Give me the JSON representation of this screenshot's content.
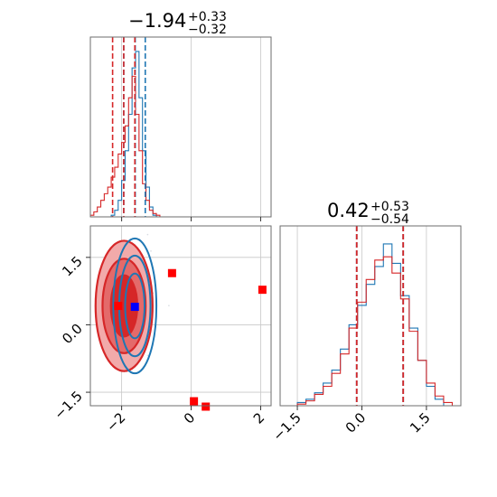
{
  "colors": {
    "blue": "#1f77b4",
    "red": "#d62728",
    "red_fill_light": "#f2aaaa",
    "red_fill_mid": "#e46a6a",
    "grid": "#c8c8c8",
    "marker_red": "#ff0000",
    "marker_blue": "#0000ff"
  },
  "chart_data": [
    {
      "type": "histogram",
      "panel": "param1-marginal",
      "title": {
        "value": "−1.94",
        "upper": "+0.33",
        "lower": "−0.32"
      },
      "xlim": [
        -2.9,
        2.3
      ],
      "grid": true,
      "series": [
        {
          "color": "#1f77b4",
          "bin_edges": [
            -2.4,
            -2.3,
            -2.2,
            -2.1,
            -2.0,
            -1.9,
            -1.8,
            -1.7,
            -1.6,
            -1.5,
            -1.4,
            -1.3,
            -1.2,
            -1.1,
            -1.0
          ],
          "counts": [
            0,
            1,
            4,
            10,
            22,
            40,
            62,
            90,
            100,
            72,
            40,
            18,
            6,
            1
          ]
        },
        {
          "color": "#d62728",
          "bin_edges": [
            -2.9,
            -2.8,
            -2.7,
            -2.6,
            -2.5,
            -2.4,
            -2.3,
            -2.2,
            -2.1,
            -2.0,
            -1.9,
            -1.8,
            -1.7,
            -1.6,
            -1.5,
            -1.4,
            -1.3,
            -1.2,
            -1.1,
            -1.0,
            -0.9,
            -0.8
          ],
          "counts": [
            1,
            3,
            6,
            10,
            14,
            18,
            24,
            30,
            38,
            45,
            55,
            72,
            85,
            62,
            40,
            20,
            10,
            4,
            2,
            1,
            0
          ]
        }
      ],
      "quantile_lines": [
        {
          "color": "#1f77b4",
          "x": [
            -1.94,
            -1.61,
            -1.32
          ]
        },
        {
          "color": "#d62728",
          "x": [
            -2.26,
            -1.94,
            -1.62
          ]
        }
      ]
    },
    {
      "type": "histogram",
      "panel": "param2-marginal",
      "title": {
        "value": "0.42",
        "upper": "+0.53",
        "lower": "−0.54"
      },
      "xlim": [
        -1.9,
        2.3
      ],
      "xticks": [
        "−1.5",
        "0.0",
        "1.5"
      ],
      "xtick_values": [
        -1.5,
        0.0,
        1.5
      ],
      "grid": true,
      "series": [
        {
          "color": "#1f77b4",
          "bin_edges": [
            -1.5,
            -1.3,
            -1.1,
            -0.9,
            -0.7,
            -0.5,
            -0.3,
            -0.1,
            0.1,
            0.3,
            0.5,
            0.7,
            0.9,
            1.1,
            1.3,
            1.5,
            1.7,
            1.9
          ],
          "counts": [
            2,
            4,
            8,
            14,
            22,
            35,
            50,
            62,
            75,
            86,
            100,
            88,
            68,
            48,
            28,
            12,
            4
          ]
        },
        {
          "color": "#d62728",
          "bin_edges": [
            -1.5,
            -1.3,
            -1.1,
            -0.9,
            -0.7,
            -0.5,
            -0.3,
            -0.1,
            0.1,
            0.3,
            0.5,
            0.7,
            0.9,
            1.1,
            1.3,
            1.5,
            1.7,
            1.9,
            2.1
          ],
          "counts": [
            1,
            3,
            7,
            12,
            20,
            32,
            48,
            64,
            78,
            90,
            92,
            82,
            66,
            46,
            28,
            14,
            6,
            2
          ]
        }
      ],
      "quantile_lines": [
        {
          "color": "#1f77b4",
          "x": [
            -0.12,
            0.96
          ]
        },
        {
          "color": "#d62728",
          "x": [
            -0.12,
            0.96
          ]
        }
      ]
    },
    {
      "type": "scatter",
      "panel": "joint",
      "xlim": [
        -2.9,
        2.3
      ],
      "ylim": [
        -1.8,
        2.2
      ],
      "xticks": [
        "−2",
        "0",
        "2"
      ],
      "xtick_values": [
        -2,
        0,
        2
      ],
      "yticks": [
        "−1.5",
        "0.0",
        "1.5"
      ],
      "ytick_values": [
        -1.5,
        0.0,
        1.5
      ],
      "grid": true,
      "contours": [
        {
          "color": "#d62728",
          "filled": true,
          "center": [
            -1.93,
            0.42
          ],
          "radii": [
            [
              0.82,
              1.45
            ],
            [
              0.62,
              1.05
            ],
            [
              0.38,
              0.68
            ]
          ]
        },
        {
          "color": "#1f77b4",
          "filled": false,
          "center": [
            -1.62,
            0.42
          ],
          "radii": [
            [
              0.62,
              1.5
            ],
            [
              0.45,
              1.12
            ],
            [
              0.28,
              0.72
            ]
          ]
        }
      ],
      "points_red": [
        {
          "x": -0.55,
          "y": 1.15
        },
        {
          "x": 2.05,
          "y": 0.78
        },
        {
          "x": 0.08,
          "y": -1.7
        },
        {
          "x": 0.42,
          "y": -1.82
        },
        {
          "x": -2.1,
          "y": 0.42
        }
      ],
      "points_blue": [
        {
          "x": -1.62,
          "y": 0.4
        }
      ]
    }
  ]
}
